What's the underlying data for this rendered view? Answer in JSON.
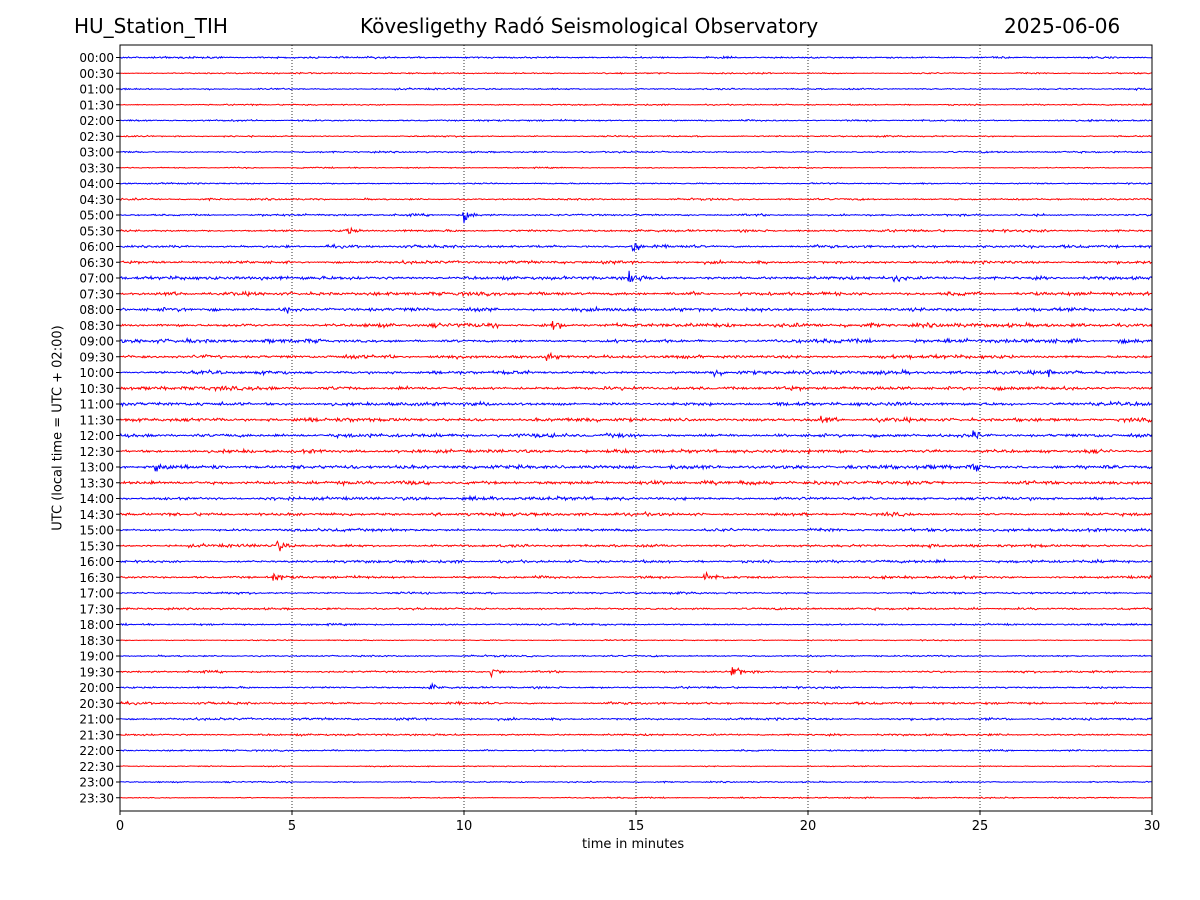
{
  "header": {
    "station": "HU_Station_TIH",
    "observatory": "Kövesligethy Radó Seismological Observatory",
    "date": "2025-06-06"
  },
  "chart_data": {
    "type": "line",
    "title": "Kövesligethy Radó Seismological Observatory",
    "xlabel": "time in minutes",
    "ylabel": "UTC (local time = UTC + 02:00)",
    "xlim": [
      0,
      30
    ],
    "xticks": [
      0,
      5,
      10,
      15,
      20,
      25,
      30
    ],
    "grid": "vertical dotted at 5-minute ticks",
    "colors": {
      "blue": "#0000ff",
      "red": "#ff0000"
    },
    "trace_colors_alternate": [
      "blue",
      "red"
    ],
    "rows": [
      "00:00",
      "00:30",
      "01:00",
      "01:30",
      "02:00",
      "02:30",
      "03:00",
      "03:30",
      "04:00",
      "04:30",
      "05:00",
      "05:30",
      "06:00",
      "06:30",
      "07:00",
      "07:30",
      "08:00",
      "08:30",
      "09:00",
      "09:30",
      "10:00",
      "10:30",
      "11:00",
      "11:30",
      "12:00",
      "12:30",
      "13:00",
      "13:30",
      "14:00",
      "14:30",
      "15:00",
      "15:30",
      "16:00",
      "16:30",
      "17:00",
      "17:30",
      "18:00",
      "18:30",
      "19:00",
      "19:30",
      "20:00",
      "20:30",
      "21:00",
      "21:30",
      "22:00",
      "22:30",
      "23:00",
      "23:30"
    ],
    "noise_level": [
      0.45,
      0.35,
      0.4,
      0.35,
      0.4,
      0.35,
      0.4,
      0.3,
      0.35,
      0.45,
      0.5,
      0.6,
      0.65,
      0.7,
      0.75,
      0.8,
      0.85,
      0.9,
      0.9,
      0.85,
      0.85,
      0.85,
      0.85,
      0.9,
      0.9,
      0.85,
      0.95,
      0.9,
      0.85,
      0.8,
      0.75,
      0.7,
      0.7,
      0.6,
      0.5,
      0.5,
      0.45,
      0.3,
      0.4,
      0.5,
      0.5,
      0.55,
      0.55,
      0.45,
      0.35,
      0.25,
      0.3,
      0.3
    ],
    "events": [
      {
        "row": 10,
        "minute": 10.0,
        "amplitude": 3.5
      },
      {
        "row": 11,
        "minute": 6.6,
        "amplitude": 2.0
      },
      {
        "row": 12,
        "minute": 14.9,
        "amplitude": 3.5
      },
      {
        "row": 14,
        "minute": 14.8,
        "amplitude": 3.5
      },
      {
        "row": 14,
        "minute": 22.5,
        "amplitude": 2.0
      },
      {
        "row": 16,
        "minute": 4.8,
        "amplitude": 2.0
      },
      {
        "row": 17,
        "minute": 12.6,
        "amplitude": 2.5
      },
      {
        "row": 19,
        "minute": 12.4,
        "amplitude": 2.2
      },
      {
        "row": 20,
        "minute": 17.3,
        "amplitude": 2.0
      },
      {
        "row": 20,
        "minute": 27.0,
        "amplitude": 2.0
      },
      {
        "row": 23,
        "minute": 20.4,
        "amplitude": 2.0
      },
      {
        "row": 24,
        "minute": 24.8,
        "amplitude": 2.5
      },
      {
        "row": 26,
        "minute": 1.0,
        "amplitude": 2.5
      },
      {
        "row": 26,
        "minute": 24.8,
        "amplitude": 2.5
      },
      {
        "row": 31,
        "minute": 4.6,
        "amplitude": 2.5
      },
      {
        "row": 33,
        "minute": 4.5,
        "amplitude": 2.0
      },
      {
        "row": 33,
        "minute": 17.0,
        "amplitude": 2.5
      },
      {
        "row": 39,
        "minute": 10.8,
        "amplitude": 2.5
      },
      {
        "row": 39,
        "minute": 17.8,
        "amplitude": 3.5
      },
      {
        "row": 40,
        "minute": 9.0,
        "amplitude": 2.5
      }
    ]
  }
}
